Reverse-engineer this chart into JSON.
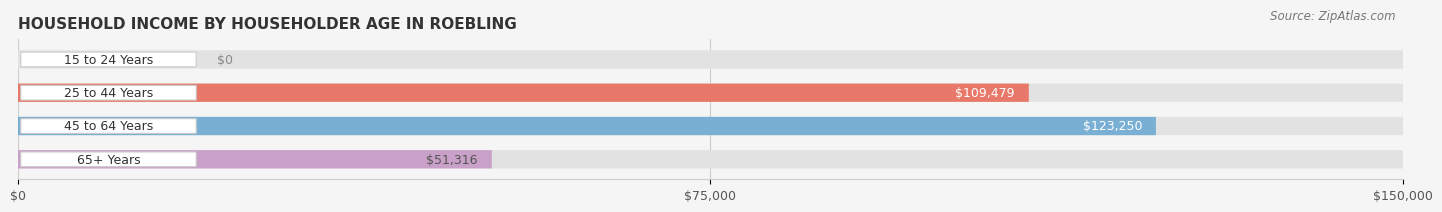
{
  "title": "HOUSEHOLD INCOME BY HOUSEHOLDER AGE IN ROEBLING",
  "source": "Source: ZipAtlas.com",
  "categories": [
    "15 to 24 Years",
    "25 to 44 Years",
    "45 to 64 Years",
    "65+ Years"
  ],
  "values": [
    0,
    109479,
    123250,
    51316
  ],
  "bar_colors": [
    "#f5c09a",
    "#e8796a",
    "#7aafd4",
    "#c9a0c8"
  ],
  "label_colors": [
    "#888888",
    "#ffffff",
    "#ffffff",
    "#555555"
  ],
  "value_labels": [
    "$0",
    "$109,479",
    "$123,250",
    "$51,316"
  ],
  "background_color": "#f5f5f5",
  "bar_background": "#e2e2e2",
  "xlim": [
    0,
    150000
  ],
  "xticks": [
    0,
    75000,
    150000
  ],
  "xticklabels": [
    "$0",
    "$75,000",
    "$150,000"
  ],
  "bar_height": 0.55,
  "title_fontsize": 11,
  "label_fontsize": 9,
  "value_fontsize": 9,
  "source_fontsize": 8.5
}
